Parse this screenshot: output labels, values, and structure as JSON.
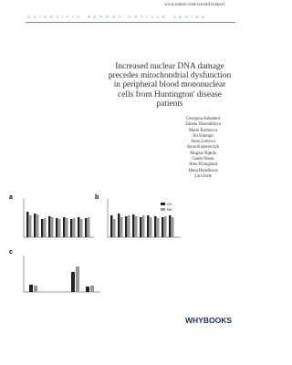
{
  "header": {
    "url": "www.nature.com/scientificreport",
    "series": "SCIENTIFIC REPORT ARTICLE SERIES"
  },
  "title": [
    "Increased nuclear DNA damage",
    "precedes mitochondrial dysfunction",
    "in peripheral blood mononuclear",
    "cells from Huntington' disease",
    "patients"
  ],
  "authors": [
    "Georgina Askeland",
    "Zaneta Dosoudilova",
    "Marie Rodinova",
    "Jiri Klempir",
    "Irena Liskova",
    "Anna Kuśnierczyk",
    "Magnar Bjørås",
    "Gaute Nesse",
    "Arne Klungland",
    "Hana Hansikova",
    "Lars Eide"
  ],
  "figure": {
    "panels": [
      "a",
      "b",
      "c"
    ],
    "legend": [
      "CH",
      "HD"
    ]
  },
  "publisher": "WHYBOOKS"
}
